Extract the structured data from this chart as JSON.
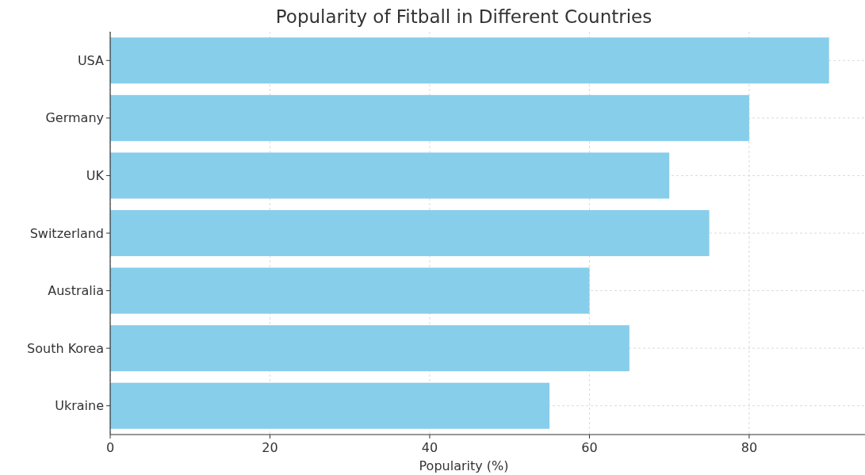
{
  "chart_data": {
    "type": "bar",
    "orientation": "horizontal",
    "title": "Popularity of Fitball in Different Countries",
    "xlabel": "Popularity (%)",
    "categories": [
      "USA",
      "Germany",
      "UK",
      "Switzerland",
      "Australia",
      "South Korea",
      "Ukraine"
    ],
    "values": [
      90,
      80,
      70,
      75,
      60,
      65,
      55
    ],
    "color": "#87ceeb",
    "xlim": [
      0,
      94.5
    ],
    "xticks": [
      0,
      20,
      40,
      60,
      80
    ],
    "grid": true
  }
}
